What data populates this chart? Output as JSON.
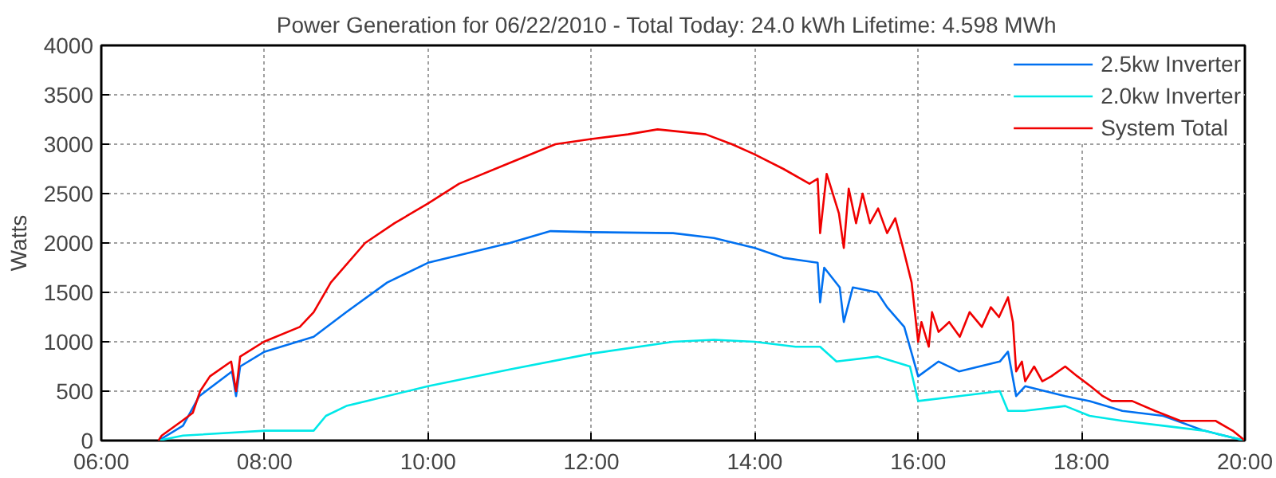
{
  "chart_data": {
    "type": "line",
    "title": "Power Generation for 06/22/2010 - Total Today: 24.0 kWh   Lifetime: 4.598 MWh",
    "ylabel": "Watts",
    "xlim": [
      6,
      20
    ],
    "xticks": [
      {
        "value": 6,
        "label": "06:00"
      },
      {
        "value": 8,
        "label": "08:00"
      },
      {
        "value": 10,
        "label": "10:00"
      },
      {
        "value": 12,
        "label": "12:00"
      },
      {
        "value": 14,
        "label": "14:00"
      },
      {
        "value": 16,
        "label": "16:00"
      },
      {
        "value": 18,
        "label": "18:00"
      },
      {
        "value": 20,
        "label": "20:00"
      }
    ],
    "ylim": [
      0,
      4000
    ],
    "yticks": [
      0,
      500,
      1000,
      1500,
      2000,
      2500,
      3000,
      3500,
      4000
    ],
    "grid": true,
    "legend": "top right",
    "marker": "none",
    "line_style": "solid",
    "series": [
      {
        "name": "2.5kw Inverter",
        "color": "#0070f0",
        "x": [
          6.7,
          7.0,
          7.2,
          7.6,
          7.65,
          7.7,
          8.0,
          8.6,
          9.0,
          9.5,
          10.0,
          11.0,
          11.5,
          12.0,
          13.0,
          13.5,
          14.0,
          14.35,
          14.77,
          14.8,
          14.85,
          15.04,
          15.09,
          15.2,
          15.5,
          15.62,
          15.83,
          16.0,
          16.25,
          16.5,
          17.0,
          17.1,
          17.2,
          17.31,
          17.8,
          18.1,
          18.5,
          19.0,
          19.5,
          20.0
        ],
        "values": [
          0,
          150,
          450,
          700,
          450,
          750,
          900,
          1050,
          1300,
          1600,
          1800,
          2000,
          2120,
          2110,
          2100,
          2050,
          1950,
          1850,
          1800,
          1400,
          1750,
          1550,
          1200,
          1550,
          1500,
          1350,
          1150,
          650,
          800,
          700,
          800,
          900,
          450,
          550,
          450,
          400,
          300,
          250,
          100,
          0
        ]
      },
      {
        "name": "2.0kw Inverter",
        "color": "#00e8e8",
        "x": [
          6.7,
          7.0,
          8.0,
          8.6,
          8.75,
          9.0,
          10.0,
          11.0,
          12.0,
          13.0,
          13.5,
          14.0,
          14.5,
          14.8,
          15.0,
          15.5,
          15.9,
          16.0,
          16.5,
          17.0,
          17.1,
          17.3,
          17.8,
          18.1,
          18.5,
          19.0,
          19.5,
          20.0
        ],
        "values": [
          0,
          50,
          100,
          100,
          250,
          350,
          550,
          720,
          880,
          1000,
          1020,
          1000,
          950,
          950,
          800,
          850,
          750,
          400,
          450,
          500,
          300,
          300,
          350,
          250,
          200,
          150,
          100,
          0
        ]
      },
      {
        "name": "System Total",
        "color": "#f00000",
        "x": [
          6.7,
          6.74,
          6.99,
          7.12,
          7.21,
          7.33,
          7.59,
          7.65,
          7.7,
          7.99,
          8.43,
          8.6,
          8.81,
          9.23,
          9.59,
          10.0,
          10.38,
          10.97,
          11.56,
          11.98,
          12.45,
          12.81,
          13.4,
          13.72,
          13.99,
          14.35,
          14.67,
          14.77,
          14.8,
          14.88,
          15.03,
          15.09,
          15.15,
          15.24,
          15.32,
          15.41,
          15.51,
          15.62,
          15.72,
          15.83,
          15.92,
          16.0,
          16.04,
          16.13,
          16.17,
          16.25,
          16.38,
          16.51,
          16.63,
          16.78,
          16.89,
          16.99,
          17.1,
          17.16,
          17.2,
          17.27,
          17.31,
          17.42,
          17.52,
          17.63,
          17.8,
          17.95,
          18.11,
          18.26,
          18.37,
          18.62,
          18.9,
          19.21,
          19.64,
          19.85,
          20.0
        ],
        "values": [
          0,
          50,
          200,
          280,
          500,
          650,
          800,
          500,
          850,
          1000,
          1150,
          1300,
          1600,
          2000,
          2200,
          2400,
          2600,
          2800,
          3000,
          3050,
          3100,
          3150,
          3100,
          3000,
          2900,
          2750,
          2600,
          2650,
          2100,
          2700,
          2300,
          1950,
          2550,
          2200,
          2500,
          2200,
          2350,
          2100,
          2250,
          1900,
          1600,
          1000,
          1200,
          950,
          1300,
          1100,
          1200,
          1050,
          1300,
          1150,
          1350,
          1250,
          1450,
          1200,
          700,
          800,
          600,
          750,
          600,
          650,
          750,
          650,
          550,
          450,
          400,
          400,
          300,
          200,
          200,
          100,
          0
        ]
      }
    ]
  }
}
